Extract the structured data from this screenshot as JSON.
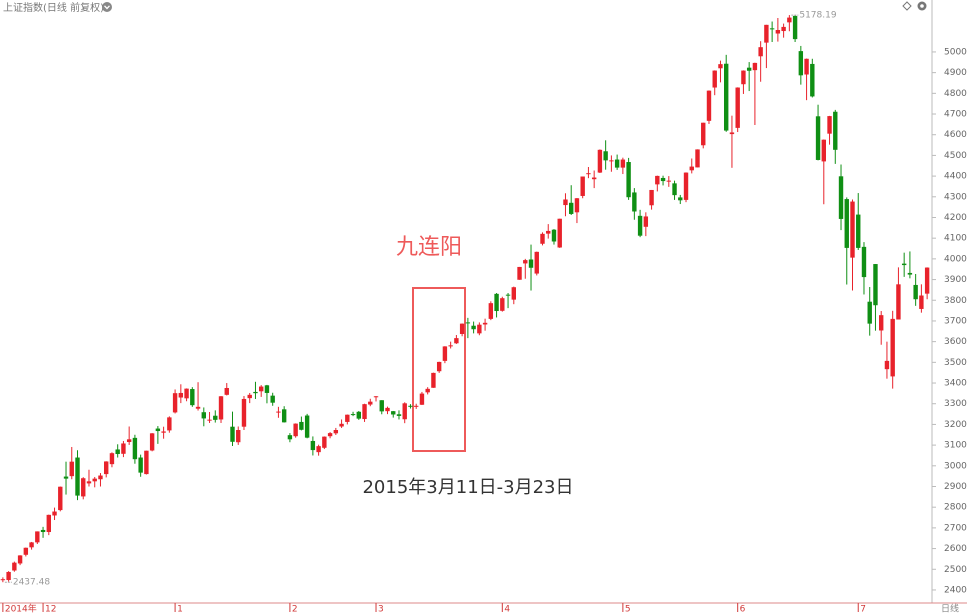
{
  "chart_data": {
    "type": "candlestick",
    "title": "上证指数(日线 前复权)",
    "period_label": "日线",
    "up_color": "#e8222b",
    "down_color": "#0f8f14",
    "ylim": [
      2337,
      5251
    ],
    "yticks": [
      2400,
      2500,
      2600,
      2700,
      2800,
      2900,
      3000,
      3100,
      3200,
      3300,
      3400,
      3500,
      3600,
      3700,
      3800,
      3900,
      4000,
      4100,
      4200,
      4300,
      4400,
      4500,
      4600,
      4700,
      4800,
      4900,
      5000
    ],
    "annotation": {
      "title": "九连阳",
      "caption": "2015年3月11日-3月23日"
    },
    "categories": [
      "2014年",
      null,
      null,
      null,
      null,
      null,
      null,
      "12",
      null,
      null,
      null,
      null,
      null,
      null,
      null,
      null,
      null,
      null,
      null,
      null,
      null,
      null,
      null,
      null,
      null,
      null,
      null,
      null,
      null,
      null,
      "1",
      null,
      null,
      null,
      null,
      null,
      null,
      null,
      null,
      null,
      null,
      null,
      null,
      null,
      null,
      null,
      null,
      null,
      null,
      null,
      "2",
      null,
      null,
      null,
      null,
      null,
      null,
      null,
      null,
      null,
      null,
      null,
      null,
      null,
      null,
      "3",
      null,
      null,
      null,
      null,
      null,
      null,
      null,
      null,
      null,
      null,
      null,
      null,
      null,
      null,
      null,
      null,
      null,
      null,
      null,
      null,
      null,
      "4",
      null,
      null,
      null,
      null,
      null,
      null,
      null,
      null,
      null,
      null,
      null,
      null,
      null,
      null,
      null,
      null,
      null,
      null,
      null,
      null,
      "5",
      null,
      null,
      null,
      null,
      null,
      null,
      null,
      null,
      null,
      null,
      null,
      null,
      null,
      null,
      null,
      null,
      null,
      null,
      null,
      "6",
      null,
      null,
      null,
      null,
      null,
      null,
      null,
      null,
      null,
      null,
      null,
      null,
      null,
      null,
      null,
      null,
      null,
      null,
      null,
      null,
      "7",
      null,
      null,
      null,
      null,
      null,
      null,
      null,
      null,
      null,
      null,
      null,
      null
    ],
    "ohlc": [
      [
        2450,
        2461,
        2437.48,
        2452
      ],
      [
        2448,
        2491,
        2440,
        2487
      ],
      [
        2494,
        2537,
        2488,
        2532
      ],
      [
        2528,
        2568,
        2520,
        2567
      ],
      [
        2570,
        2605,
        2562,
        2604
      ],
      [
        2606,
        2632,
        2595,
        2630
      ],
      [
        2630,
        2683,
        2622,
        2683
      ],
      [
        2690,
        2705,
        2652,
        2680
      ],
      [
        2680,
        2764,
        2665,
        2763
      ],
      [
        2760,
        2798,
        2738,
        2779
      ],
      [
        2786,
        2900,
        2780,
        2899
      ],
      [
        2948,
        3020,
        2861,
        2938
      ],
      [
        2950,
        3091,
        2935,
        3020
      ],
      [
        3040,
        3075,
        2834,
        2856
      ],
      [
        2852,
        2945,
        2838,
        2940
      ],
      [
        2915,
        2981,
        2900,
        2925
      ],
      [
        2925,
        2946,
        2896,
        2938
      ],
      [
        2935,
        2965,
        2900,
        2953
      ],
      [
        2960,
        3022,
        2944,
        3021
      ],
      [
        3008,
        3065,
        2993,
        3061
      ],
      [
        3079,
        3104,
        3040,
        3057
      ],
      [
        3058,
        3120,
        3042,
        3108
      ],
      [
        3115,
        3190,
        3101,
        3128
      ],
      [
        3135,
        3150,
        3010,
        3032
      ],
      [
        3040,
        3054,
        2947,
        2967
      ],
      [
        2960,
        3073,
        2958,
        3073
      ],
      [
        3074,
        3158,
        3070,
        3157
      ],
      [
        3180,
        3192,
        3106,
        3168
      ],
      [
        3160,
        3189,
        3131,
        3166
      ],
      [
        3171,
        3239,
        3160,
        3234
      ],
      [
        3258,
        3369,
        3253,
        3351
      ],
      [
        3330,
        3394,
        3303,
        3352
      ],
      [
        3326,
        3374,
        3312,
        3373
      ],
      [
        3371,
        3380,
        3285,
        3293
      ],
      [
        3276,
        3404,
        3267,
        3285
      ],
      [
        3259,
        3282,
        3191,
        3229
      ],
      [
        3223,
        3260,
        3207,
        3223
      ],
      [
        3242,
        3268,
        3209,
        3222
      ],
      [
        3224,
        3337,
        3207,
        3336
      ],
      [
        3343,
        3400,
        3340,
        3376
      ],
      [
        3189,
        3262,
        3096,
        3116
      ],
      [
        3114,
        3190,
        3101,
        3173
      ],
      [
        3189,
        3337,
        3173,
        3323
      ],
      [
        3327,
        3352,
        3303,
        3343
      ],
      [
        3357,
        3406,
        3323,
        3351
      ],
      [
        3360,
        3390,
        3333,
        3383
      ],
      [
        3389,
        3391,
        3302,
        3352
      ],
      [
        3339,
        3353,
        3290,
        3305
      ],
      [
        3258,
        3285,
        3232,
        3262
      ],
      [
        3273,
        3288,
        3209,
        3210
      ],
      [
        3148,
        3158,
        3114,
        3128
      ],
      [
        3143,
        3205,
        3136,
        3204
      ],
      [
        3212,
        3238,
        3171,
        3174
      ],
      [
        3243,
        3251,
        3133,
        3136
      ],
      [
        3120,
        3142,
        3050,
        3076
      ],
      [
        3066,
        3102,
        3049,
        3095
      ],
      [
        3087,
        3142,
        3081,
        3141
      ],
      [
        3143,
        3163,
        3133,
        3158
      ],
      [
        3157,
        3183,
        3149,
        3173
      ],
      [
        3190,
        3224,
        3183,
        3203
      ],
      [
        3212,
        3248,
        3200,
        3247
      ],
      [
        3250,
        3261,
        3240,
        3246
      ],
      [
        3261,
        3265,
        3222,
        3228
      ],
      [
        3226,
        3300,
        3212,
        3298
      ],
      [
        3296,
        3324,
        3288,
        3310
      ],
      [
        3332,
        3337,
        3311,
        3336
      ],
      [
        3317,
        3317,
        3249,
        3263
      ],
      [
        3264,
        3286,
        3250,
        3280
      ],
      [
        3264,
        3265,
        3233,
        3248
      ],
      [
        3249,
        3268,
        3224,
        3241
      ],
      [
        3225,
        3307,
        3206,
        3302
      ],
      [
        3290,
        3298,
        3277,
        3286
      ],
      [
        3285,
        3300,
        3275,
        3290
      ],
      [
        3295,
        3357,
        3294,
        3349
      ],
      [
        3355,
        3380,
        3345,
        3372
      ],
      [
        3377,
        3450,
        3377,
        3449
      ],
      [
        3457,
        3503,
        3449,
        3502
      ],
      [
        3507,
        3578,
        3496,
        3577
      ],
      [
        3582,
        3600,
        3567,
        3582
      ],
      [
        3592,
        3632,
        3589,
        3617
      ],
      [
        3637,
        3688,
        3626,
        3687
      ],
      [
        3693,
        3715,
        3617,
        3691
      ],
      [
        3677,
        3697,
        3640,
        3660
      ],
      [
        3640,
        3693,
        3631,
        3682
      ],
      [
        3683,
        3711,
        3653,
        3691
      ],
      [
        3710,
        3795,
        3704,
        3786
      ],
      [
        3831,
        3835,
        3717,
        3748
      ],
      [
        3749,
        3817,
        3745,
        3810
      ],
      [
        3827,
        3835,
        3762,
        3825
      ],
      [
        3803,
        3866,
        3781,
        3863
      ],
      [
        3899,
        3961,
        3899,
        3961
      ],
      [
        3978,
        4000,
        3904,
        3994
      ],
      [
        3997,
        4069,
        3847,
        3957
      ],
      [
        3929,
        4035,
        3920,
        4034
      ],
      [
        4073,
        4128,
        4065,
        4121
      ],
      [
        4122,
        4168,
        4098,
        4135
      ],
      [
        4141,
        4144,
        4069,
        4084
      ],
      [
        4055,
        4194,
        4053,
        4194
      ],
      [
        4260,
        4317,
        4206,
        4287
      ],
      [
        4271,
        4356,
        4212,
        4217
      ],
      [
        4225,
        4294,
        4173,
        4293
      ],
      [
        4304,
        4398,
        4293,
        4398
      ],
      [
        4411,
        4444,
        4390,
        4414
      ],
      [
        4385,
        4427,
        4342,
        4393
      ],
      [
        4417,
        4529,
        4415,
        4527
      ],
      [
        4520,
        4573,
        4431,
        4476
      ],
      [
        4473,
        4500,
        4421,
        4476
      ],
      [
        4480,
        4504,
        4430,
        4441
      ],
      [
        4441,
        4489,
        4410,
        4480
      ],
      [
        4468,
        4488,
        4285,
        4298
      ],
      [
        4321,
        4342,
        4189,
        4229
      ],
      [
        4208,
        4237,
        4105,
        4112
      ],
      [
        4155,
        4225,
        4110,
        4205
      ],
      [
        4259,
        4333,
        4238,
        4333
      ],
      [
        4360,
        4402,
        4326,
        4401
      ],
      [
        4391,
        4402,
        4355,
        4376
      ],
      [
        4376,
        4400,
        4348,
        4378
      ],
      [
        4365,
        4378,
        4285,
        4308
      ],
      [
        4297,
        4309,
        4265,
        4283
      ],
      [
        4285,
        4418,
        4274,
        4417
      ],
      [
        4428,
        4485,
        4413,
        4446
      ],
      [
        4442,
        4529,
        4442,
        4529
      ],
      [
        4549,
        4658,
        4534,
        4658
      ],
      [
        4667,
        4814,
        4652,
        4813
      ],
      [
        4828,
        4911,
        4791,
        4910
      ],
      [
        4921,
        4958,
        4853,
        4941
      ],
      [
        4943,
        4986,
        4614,
        4620
      ],
      [
        4603,
        4692,
        4440,
        4611
      ],
      [
        4633,
        4829,
        4613,
        4828
      ],
      [
        4844,
        4911,
        4797,
        4910
      ],
      [
        4924,
        4951,
        4811,
        4909
      ],
      [
        4912,
        4948,
        4647,
        4947
      ],
      [
        4979,
        5052,
        4856,
        5023
      ],
      [
        5045,
        5131,
        4922,
        5131
      ],
      [
        5114,
        5147,
        5048,
        5113
      ],
      [
        5089,
        5164,
        5050,
        5106
      ],
      [
        5101,
        5137,
        5069,
        5121
      ],
      [
        5143,
        5178.19,
        5100,
        5166
      ],
      [
        5174,
        5176,
        5048,
        5062
      ],
      [
        5004,
        5029,
        4842,
        4887
      ],
      [
        4891,
        4968,
        4767,
        4967
      ],
      [
        4942,
        4967,
        4780,
        4785
      ],
      [
        4689,
        4745,
        4476,
        4478
      ],
      [
        4471,
        4577,
        4264,
        4576
      ],
      [
        4605,
        4691,
        4552,
        4690
      ],
      [
        4711,
        4720,
        4459,
        4527
      ],
      [
        4399,
        4456,
        4139,
        4193
      ],
      [
        4289,
        4297,
        3876,
        4053
      ],
      [
        4006,
        4287,
        3847,
        4277
      ],
      [
        4214,
        4318,
        4043,
        4053
      ],
      [
        4058,
        4081,
        3828,
        3912
      ],
      [
        3793,
        3864,
        3629,
        3687
      ],
      [
        3975,
        3975,
        3653,
        3776
      ],
      [
        3654,
        3748,
        3585,
        3728
      ],
      [
        3467,
        3600,
        3421,
        3507
      ],
      [
        3432,
        3749,
        3373,
        3710
      ],
      [
        3707,
        3959,
        3707,
        3877
      ],
      [
        3977,
        4030,
        3913,
        3970
      ],
      [
        3932,
        4036,
        3906,
        3924
      ],
      [
        3874,
        3927,
        3773,
        3805
      ],
      [
        3758,
        3877,
        3740,
        3823
      ],
      [
        3832,
        3959,
        3805,
        3958
      ]
    ]
  }
}
